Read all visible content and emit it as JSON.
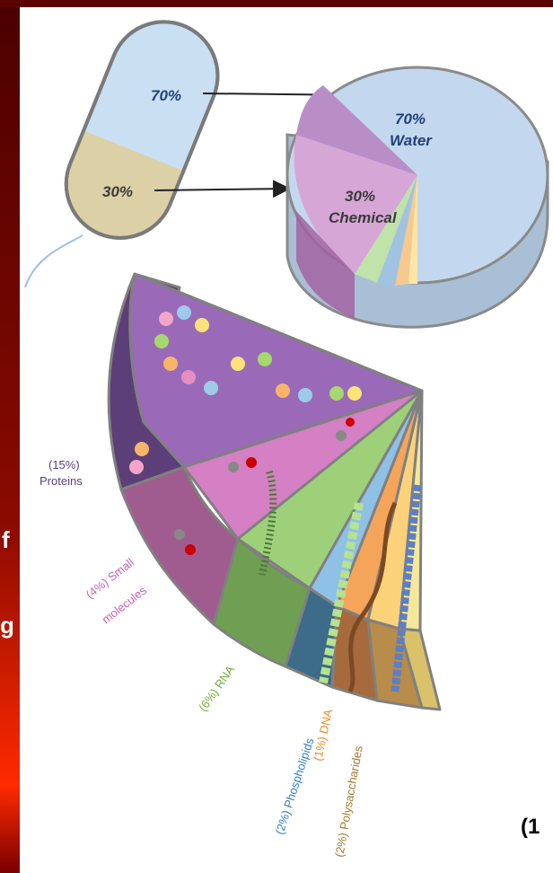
{
  "capsule": {
    "top_label": "70%",
    "bottom_label": "30%"
  },
  "pie": {
    "water_percent": "70%",
    "water_label": "Water",
    "chemical_percent": "30%",
    "chemical_label": "Chemical"
  },
  "fan": {
    "labels": [
      {
        "lines": [
          "(15%)",
          "Proteins"
        ]
      },
      {
        "lines": [
          "(4%) Small",
          "molecules"
        ]
      },
      {
        "lines": [
          "(6%) RNA"
        ]
      },
      {
        "lines": [
          "(2%) Phospholipids"
        ]
      },
      {
        "lines": [
          "(1%) DNA"
        ]
      },
      {
        "lines": [
          "(2%) Polysaccharides"
        ]
      }
    ]
  },
  "cut_texts": [
    "f",
    "g",
    "(1"
  ]
}
